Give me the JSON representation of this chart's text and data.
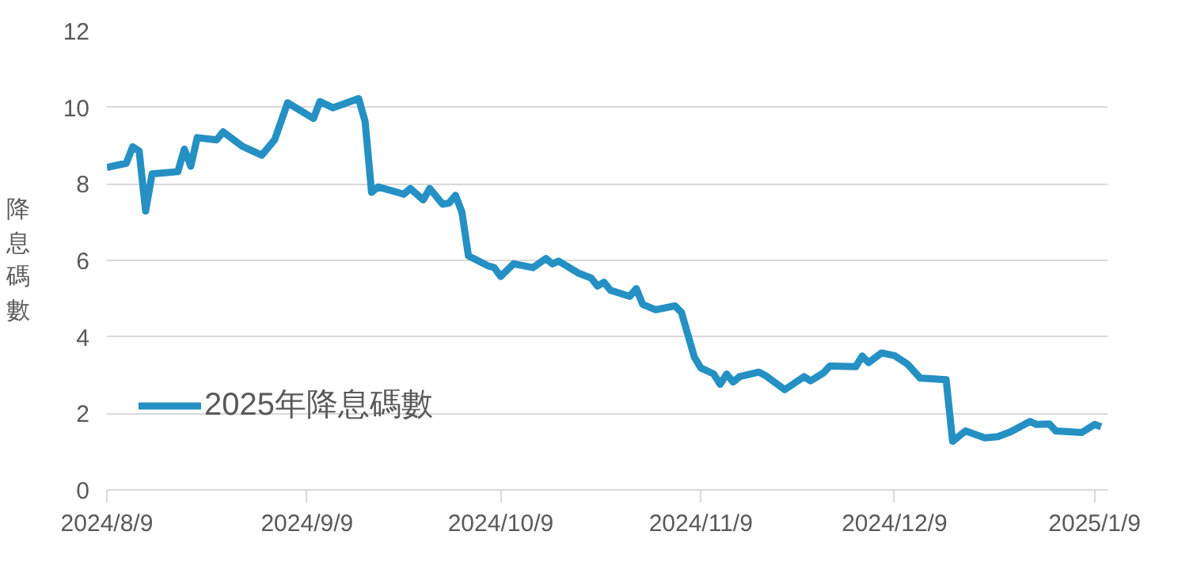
{
  "chart_data": {
    "type": "line",
    "ylabel": "降息碼數",
    "x": [
      "2024-08-09",
      "2024-08-12",
      "2024-08-13",
      "2024-08-14",
      "2024-08-15",
      "2024-08-16",
      "2024-08-20",
      "2024-08-21",
      "2024-08-22",
      "2024-08-23",
      "2024-08-26",
      "2024-08-27",
      "2024-08-30",
      "2024-09-02",
      "2024-09-04",
      "2024-09-06",
      "2024-09-10",
      "2024-09-11",
      "2024-09-13",
      "2024-09-17",
      "2024-09-18",
      "2024-09-19",
      "2024-09-20",
      "2024-09-23",
      "2024-09-24",
      "2024-09-25",
      "2024-09-27",
      "2024-09-28",
      "2024-09-30",
      "2024-10-01",
      "2024-10-02",
      "2024-10-03",
      "2024-10-04",
      "2024-10-07",
      "2024-10-08",
      "2024-10-09",
      "2024-10-11",
      "2024-10-14",
      "2024-10-16",
      "2024-10-17",
      "2024-10-18",
      "2024-10-21",
      "2024-10-23",
      "2024-10-24",
      "2024-10-25",
      "2024-10-26",
      "2024-10-29",
      "2024-10-30",
      "2024-10-31",
      "2024-11-02",
      "2024-11-05",
      "2024-11-06",
      "2024-11-08",
      "2024-11-09",
      "2024-11-11",
      "2024-11-12",
      "2024-11-13",
      "2024-11-14",
      "2024-11-15",
      "2024-11-18",
      "2024-11-19",
      "2024-11-22",
      "2024-11-25",
      "2024-11-26",
      "2024-11-28",
      "2024-11-29",
      "2024-12-03",
      "2024-12-04",
      "2024-12-05",
      "2024-12-07",
      "2024-12-09",
      "2024-12-11",
      "2024-12-13",
      "2024-12-17",
      "2024-12-18",
      "2024-12-20",
      "2024-12-23",
      "2024-12-25",
      "2024-12-27",
      "2024-12-30",
      "2024-12-31",
      "2025-01-02",
      "2025-01-03",
      "2025-01-07",
      "2025-01-09",
      "2025-01-10"
    ],
    "series": [
      {
        "name": "2025年降息碼數",
        "color": "#2590c4",
        "values": [
          8.43,
          8.54,
          8.97,
          8.86,
          7.29,
          8.26,
          8.32,
          8.91,
          8.46,
          9.21,
          9.15,
          9.36,
          8.98,
          8.75,
          9.16,
          10.12,
          9.71,
          10.15,
          9.99,
          10.23,
          9.63,
          7.78,
          7.92,
          7.78,
          7.73,
          7.88,
          7.58,
          7.88,
          7.47,
          7.5,
          7.7,
          7.26,
          6.12,
          5.86,
          5.81,
          5.58,
          5.91,
          5.81,
          6.05,
          5.91,
          5.98,
          5.67,
          5.54,
          5.33,
          5.43,
          5.22,
          5.06,
          5.26,
          4.85,
          4.71,
          4.81,
          4.64,
          3.47,
          3.19,
          3.03,
          2.76,
          3.03,
          2.82,
          2.96,
          3.08,
          2.99,
          2.62,
          2.96,
          2.85,
          3.06,
          3.24,
          3.22,
          3.5,
          3.33,
          3.58,
          3.51,
          3.29,
          2.92,
          2.88,
          1.27,
          1.54,
          1.36,
          1.39,
          1.52,
          1.79,
          1.71,
          1.72,
          1.54,
          1.5,
          1.71,
          1.65
        ]
      }
    ],
    "xlim": [
      "2024-08-09",
      "2025-01-11"
    ],
    "xticks": [
      {
        "value": "2024-08-09",
        "label": "2024/8/9"
      },
      {
        "value": "2024-09-09",
        "label": "2024/9/9"
      },
      {
        "value": "2024-10-09",
        "label": "2024/10/9"
      },
      {
        "value": "2024-11-09",
        "label": "2024/11/9"
      },
      {
        "value": "2024-12-09",
        "label": "2024/12/9"
      },
      {
        "value": "2025-01-09",
        "label": "2025/1/9"
      }
    ],
    "ylim": [
      0,
      12
    ],
    "yticks": [
      0,
      2,
      4,
      6,
      8,
      10,
      12
    ],
    "grid": "y",
    "legend": "bottom left",
    "line_style": "solid",
    "marker": "none"
  }
}
